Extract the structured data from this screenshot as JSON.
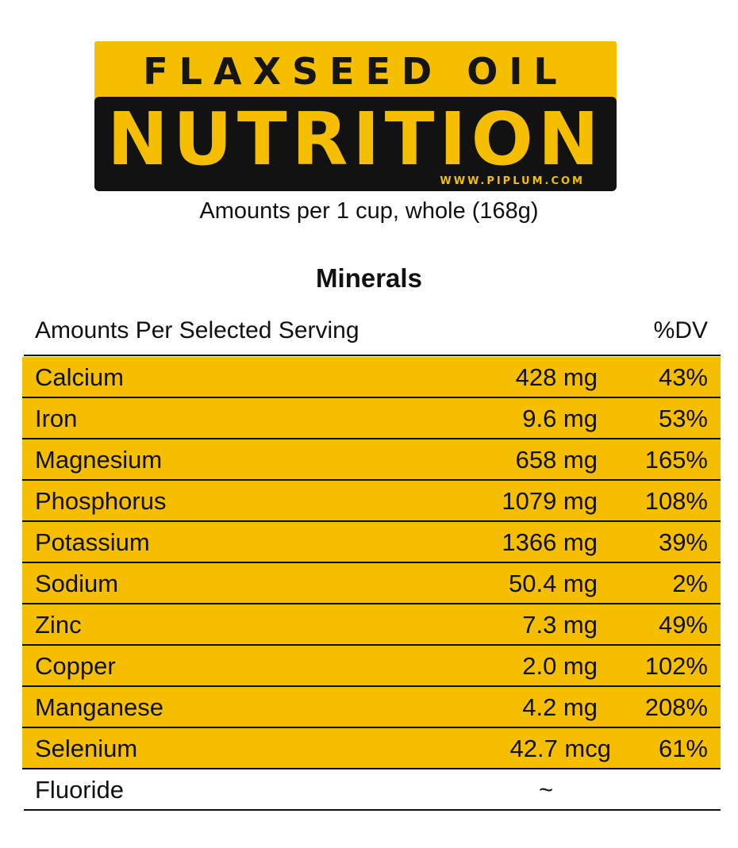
{
  "banner": {
    "line1": "FLAXSEED OIL",
    "line2": "NUTRITION",
    "url": "WWW.PIPLUM.COM",
    "accent_color": "#f5bf00",
    "dark_color": "#121212"
  },
  "subtitle": "Amounts per 1 cup, whole (168g)",
  "section_title": "Minerals",
  "table": {
    "header_left": "Amounts Per Selected Serving",
    "header_right": "%DV",
    "rows": [
      {
        "name": "Calcium",
        "amount": "428 mg",
        "dv": "43%"
      },
      {
        "name": "Iron",
        "amount": "9.6 mg",
        "dv": "53%"
      },
      {
        "name": "Magnesium",
        "amount": "658 mg",
        "dv": "165%"
      },
      {
        "name": "Phosphorus",
        "amount": "1079 mg",
        "dv": "108%"
      },
      {
        "name": "Potassium",
        "amount": "1366 mg",
        "dv": "39%"
      },
      {
        "name": "Sodium",
        "amount": "50.4 mg",
        "dv": "2%"
      },
      {
        "name": "Zinc",
        "amount": "7.3 mg",
        "dv": "49%"
      },
      {
        "name": "Copper",
        "amount": "2.0 mg",
        "dv": "102%"
      },
      {
        "name": "Manganese",
        "amount": "4.2 mg",
        "dv": "208%"
      },
      {
        "name": "Selenium",
        "amount": "42.7 mcg",
        "dv": "61%"
      },
      {
        "name": "Fluoride",
        "amount": "~",
        "dv": ""
      }
    ]
  }
}
